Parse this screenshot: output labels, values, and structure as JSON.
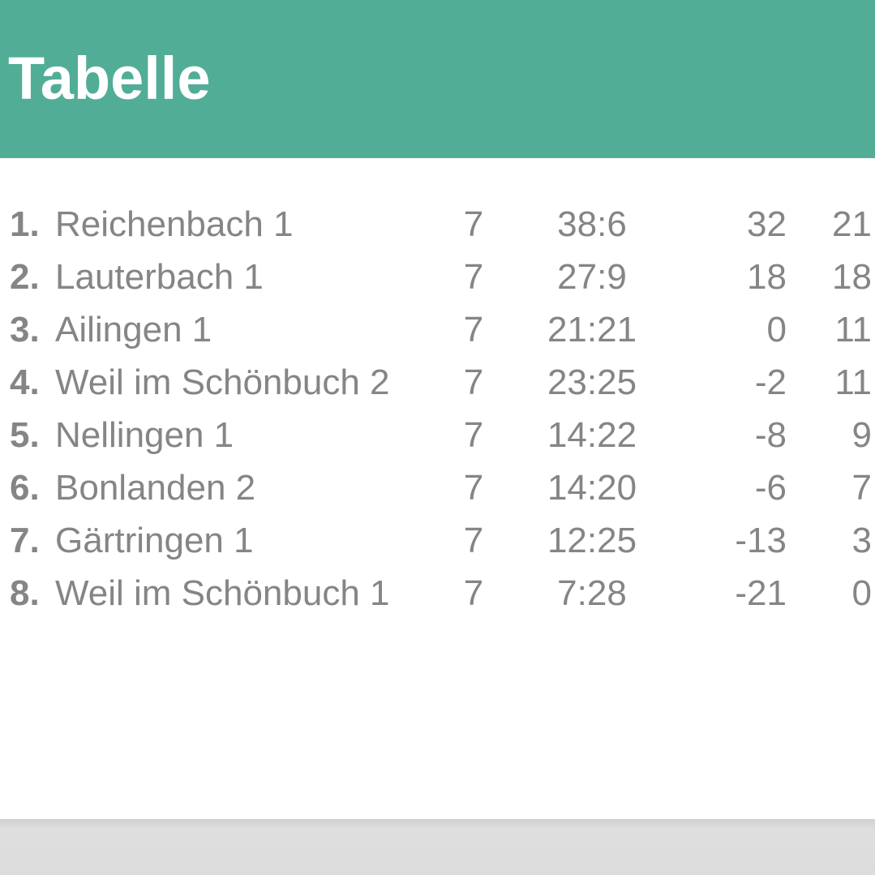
{
  "header": {
    "title": "Tabelle"
  },
  "table": {
    "rows": [
      [
        "1.",
        "Reichenbach 1",
        7,
        "38:6",
        32,
        21
      ],
      [
        "2.",
        "Lauterbach 1",
        7,
        "27:9",
        18,
        18
      ],
      [
        "3.",
        "Ailingen 1",
        7,
        "21:21",
        0,
        11
      ],
      [
        "4.",
        "Weil im Schönbuch 2",
        7,
        "23:25",
        -2,
        11
      ],
      [
        "5.",
        "Nellingen 1",
        7,
        "14:22",
        -8,
        9
      ],
      [
        "6.",
        "Bonlanden 2",
        7,
        "14:20",
        -6,
        7
      ],
      [
        "7.",
        "Gärtringen 1",
        7,
        "12:25",
        -13,
        3
      ],
      [
        "8.",
        "Weil im Schönbuch 1",
        7,
        "7:28",
        -21,
        0
      ]
    ]
  }
}
